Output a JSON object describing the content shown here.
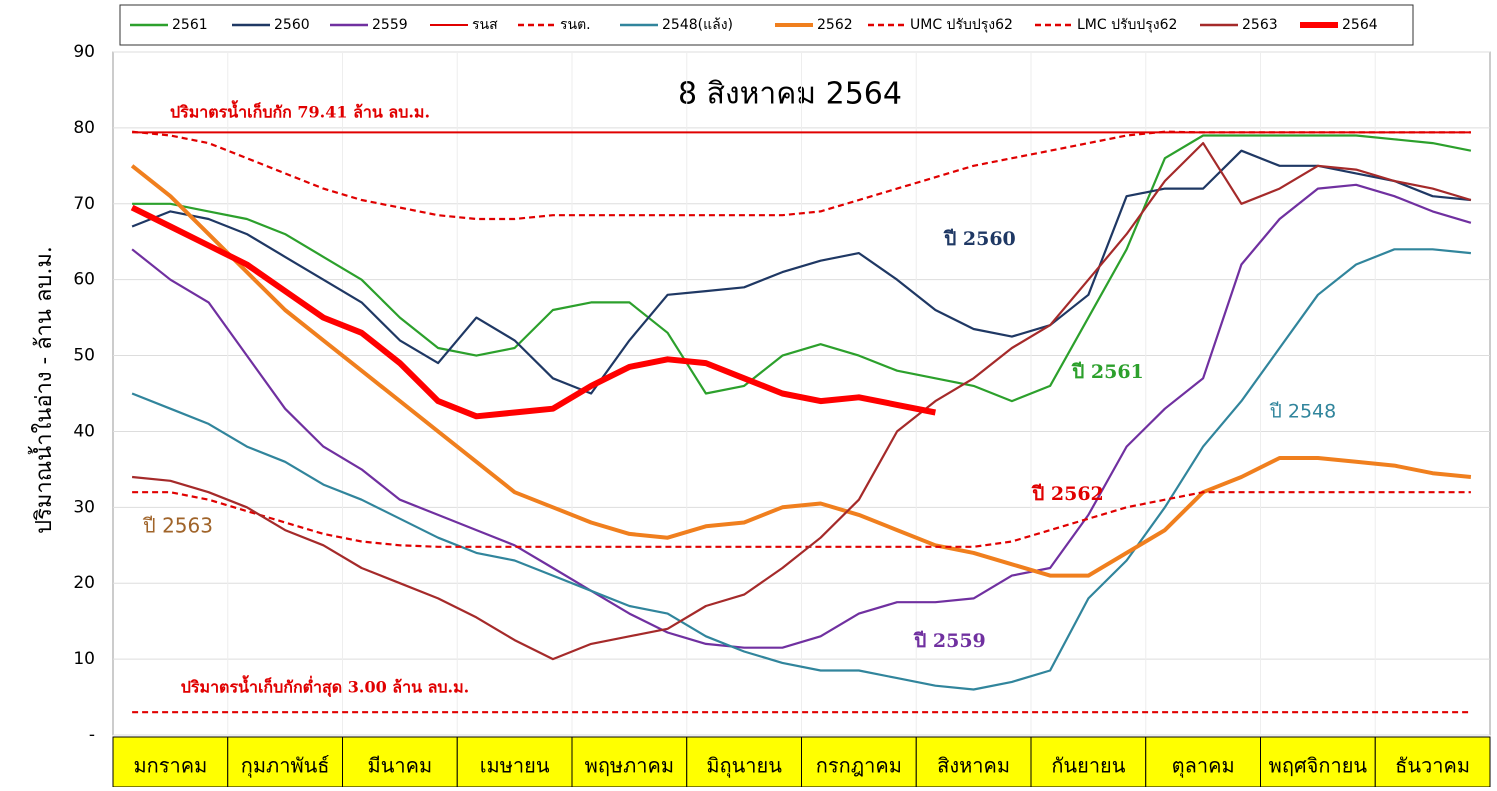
{
  "chart_data": {
    "type": "line",
    "title": "8 สิงหาคม 2564",
    "y_label": "ปริมาณน้ำในอ่าง - ล้าน ลบ.ม.",
    "annotations": [
      {
        "text": "ปริมาตรน้ำเก็บกัก 79.41 ล้าน ลบ.ม.",
        "color": "#e00000"
      },
      {
        "text": "ปริมาตรน้ำเก็บกักต่ำสุด 3.00 ล้าน ลบ.ม.",
        "color": "#e00000"
      },
      {
        "text": "ปี 2560",
        "color": "#1f3864"
      },
      {
        "text": "ปี 2561",
        "color": "#2ca02c"
      },
      {
        "text": "ปี 2548",
        "color": "#31859c"
      },
      {
        "text": "ปี 2562",
        "color": "#e00000"
      },
      {
        "text": "ปี 2559",
        "color": "#7030a0"
      },
      {
        "text": "ปี 2563",
        "color": "#a0642a"
      }
    ],
    "categories": [
      null,
      "มกราคม",
      null,
      null,
      "กุมภาพันธ์",
      null,
      null,
      "มีนาคม",
      null,
      null,
      "เมษายน",
      null,
      null,
      "พฤษภาคม",
      null,
      null,
      "มิถุนายน",
      null,
      null,
      "กรกฎาคม",
      null,
      null,
      "สิงหาคม",
      null,
      null,
      "กันยายน",
      null,
      null,
      "ตุลาคม",
      null,
      null,
      "พฤศจิกายน",
      null,
      null,
      "ธันวาคม",
      null
    ],
    "ylim": [
      0,
      90
    ],
    "yticks": [
      {
        "value": 0,
        "label": "-"
      },
      10,
      20,
      30,
      40,
      50,
      60,
      70,
      80,
      90
    ],
    "grid": true,
    "series": [
      {
        "name": "2561",
        "color": "#2ca02c",
        "values": [
          70,
          70,
          69,
          68,
          66,
          63,
          60,
          55,
          51,
          50,
          51,
          56,
          57,
          57,
          53,
          45,
          46,
          50,
          51.5,
          50,
          48,
          47,
          46,
          44,
          46,
          55,
          64,
          76,
          79,
          79,
          79,
          79,
          79,
          78.5,
          78,
          77
        ]
      },
      {
        "name": "2560",
        "color": "#1f3864",
        "values": [
          67,
          69,
          68,
          66,
          63,
          60,
          57,
          52,
          49,
          55,
          52,
          47,
          45,
          52,
          58,
          58.5,
          59,
          61,
          62.5,
          63.5,
          60,
          56,
          53.5,
          52.5,
          54,
          58,
          71,
          72,
          72,
          77,
          75,
          75,
          74,
          73,
          71,
          70.5
        ]
      },
      {
        "name": "2559",
        "color": "#7030a0",
        "values": [
          64,
          60,
          57,
          50,
          43,
          38,
          35,
          31,
          29,
          27,
          25,
          22,
          19,
          16,
          13.5,
          12,
          11.5,
          11.5,
          13,
          16,
          17.5,
          17.5,
          18,
          21,
          22,
          29,
          38,
          43,
          47,
          62,
          68,
          72,
          72.5,
          71,
          69,
          67.5
        ]
      },
      {
        "name": "รนส",
        "color": "#e00000",
        "dashed": false,
        "values": [
          79.41,
          79.41,
          79.41,
          79.41,
          79.41,
          79.41,
          79.41,
          79.41,
          79.41,
          79.41,
          79.41,
          79.41,
          79.41,
          79.41,
          79.41,
          79.41,
          79.41,
          79.41,
          79.41,
          79.41,
          79.41,
          79.41,
          79.41,
          79.41,
          79.41,
          79.41,
          79.41,
          79.41,
          79.41,
          79.41,
          79.41,
          79.41,
          79.41,
          79.41,
          79.41,
          79.41
        ]
      },
      {
        "name": "รนต.",
        "color": "#e00000",
        "dashed": true,
        "values": [
          3,
          3,
          3,
          3,
          3,
          3,
          3,
          3,
          3,
          3,
          3,
          3,
          3,
          3,
          3,
          3,
          3,
          3,
          3,
          3,
          3,
          3,
          3,
          3,
          3,
          3,
          3,
          3,
          3,
          3,
          3,
          3,
          3,
          3,
          3,
          3
        ]
      },
      {
        "name": "2548(แล้ง)",
        "color": "#31859c",
        "values": [
          45,
          43,
          41,
          38,
          36,
          33,
          31,
          28.5,
          26,
          24,
          23,
          21,
          19,
          17,
          16,
          13,
          11,
          9.5,
          8.5,
          8.5,
          7.5,
          6.5,
          6,
          7,
          8.5,
          18,
          23,
          30,
          38,
          44,
          51,
          58,
          62,
          64,
          64,
          63.5
        ]
      },
      {
        "name": "2562",
        "color": "#f07f1e",
        "values": [
          75,
          71,
          66,
          61,
          56,
          52,
          48,
          44,
          40,
          36,
          32,
          30,
          28,
          26.5,
          26,
          27.5,
          28,
          30,
          30.5,
          29,
          27,
          25,
          24,
          22.5,
          21,
          21,
          24,
          27,
          32,
          34,
          36.5,
          36.5,
          36,
          35.5,
          34.5,
          34
        ]
      },
      {
        "name": "UMC ปรับปรุง62",
        "color": "#e00000",
        "dashed": true,
        "values": [
          79.5,
          79,
          78,
          76,
          74,
          72,
          70.5,
          69.5,
          68.5,
          68,
          68,
          68.5,
          68.5,
          68.5,
          68.5,
          68.5,
          68.5,
          68.5,
          69,
          70.5,
          72,
          73.5,
          75,
          76,
          77,
          78,
          79,
          79.5,
          79.4,
          79.4,
          79.4,
          79.4,
          79.4,
          79.4,
          79.4,
          79.4
        ]
      },
      {
        "name": "LMC ปรับปรุง62",
        "color": "#e00000",
        "dashed": true,
        "values": [
          32,
          32,
          31,
          29.5,
          28,
          26.5,
          25.5,
          25,
          24.8,
          24.8,
          24.8,
          24.8,
          24.8,
          24.8,
          24.8,
          24.8,
          24.8,
          24.8,
          24.8,
          24.8,
          24.8,
          24.8,
          24.8,
          25.5,
          27,
          28.5,
          30,
          31,
          32,
          32,
          32,
          32,
          32,
          32,
          32,
          32
        ]
      },
      {
        "name": "2563",
        "color": "#a52a2a",
        "values": [
          34,
          33.5,
          32,
          30,
          27,
          25,
          22,
          20,
          18,
          15.5,
          12.5,
          10,
          12,
          13,
          14,
          17,
          18.5,
          22,
          26,
          31,
          40,
          44,
          47,
          51,
          54,
          60,
          66,
          73,
          78,
          70,
          72,
          75,
          74.5,
          73,
          72,
          70.5
        ]
      },
      {
        "name": "2564",
        "color": "#ff0000",
        "values": [
          69.5,
          67,
          64.5,
          62,
          58.5,
          55,
          53,
          49,
          44,
          42,
          42.5,
          43,
          46,
          48.5,
          49.5,
          49,
          47,
          45,
          44,
          44.5,
          43.5,
          42.5,
          null,
          null,
          null,
          null,
          null,
          null,
          null,
          null,
          null,
          null,
          null,
          null,
          null,
          null
        ]
      }
    ]
  }
}
